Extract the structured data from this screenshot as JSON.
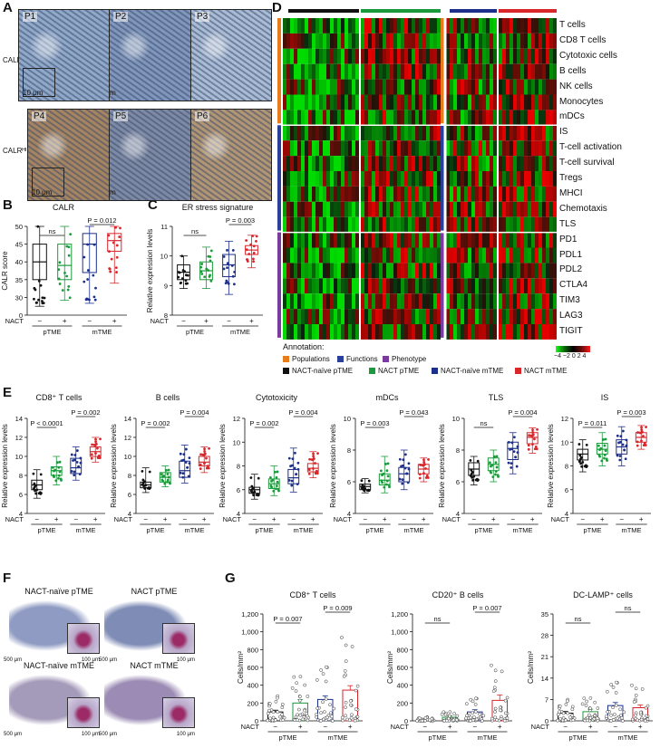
{
  "panels": {
    "A": "A",
    "B": "B",
    "C": "C",
    "D": "D",
    "E": "E",
    "F": "F",
    "G": "G"
  },
  "panelA": {
    "images": [
      {
        "label": "P1",
        "group": "lo",
        "color": "#8fa9c9"
      },
      {
        "label": "P2",
        "group": "lo",
        "color": "#7e97ba"
      },
      {
        "label": "P3",
        "group": "lo",
        "color": "#a8bcd4"
      },
      {
        "label": "P4",
        "group": "hi",
        "color": "#a48560"
      },
      {
        "label": "P5",
        "group": "hi",
        "color": "#7d8aa3"
      },
      {
        "label": "P6",
        "group": "hi",
        "color": "#b09672"
      }
    ],
    "row_labels": {
      "lo": "CALRᴸᴼ",
      "hi": "CALRᴴᴵ"
    },
    "scale_small": "10 μm",
    "scale_large": "100 μm"
  },
  "groups": {
    "nact_row": "NACT",
    "minus": "−",
    "plus": "+",
    "pTME": "pTME",
    "mTME": "mTME"
  },
  "colors": {
    "naive_p": "#111111",
    "nact_p": "#1a9a3a",
    "naive_m": "#1c2f8c",
    "nact_m": "#d8262b",
    "populations": "#e87b1c",
    "functions": "#2a3f9a",
    "phenotype": "#7a3aa0"
  },
  "chart_data": [
    {
      "id": "B",
      "type": "box",
      "title": "CALR",
      "ylabel": "CALR score",
      "yticks": [
        "0",
        "30",
        "35",
        "40",
        "45",
        "50"
      ],
      "ylim": [
        0,
        50
      ],
      "series": [
        {
          "name": "NACT-naïve pTME",
          "q1": 35,
          "median": 40,
          "q3": 45,
          "min": 15,
          "max": 50
        },
        {
          "name": "NACT pTME",
          "q1": 35,
          "median": 39,
          "q3": 45,
          "min": 25,
          "max": 50
        },
        {
          "name": "NACT-naïve mTME",
          "q1": 37,
          "median": 45,
          "q3": 48,
          "min": 20,
          "max": 50
        },
        {
          "name": "NACT mTME",
          "q1": 43,
          "median": 46,
          "q3": 48,
          "min": 34,
          "max": 50
        }
      ],
      "annotations": [
        {
          "text": "ns",
          "pair": [
            0,
            1
          ]
        },
        {
          "text": "P = 0.012",
          "pair": [
            2,
            3
          ]
        }
      ]
    },
    {
      "id": "C",
      "type": "box",
      "title": "ER stress signature",
      "ylabel": "Relative expression levels",
      "yticks": [
        "8",
        "9",
        "10",
        "11"
      ],
      "ylim": [
        8,
        11
      ],
      "series": [
        {
          "name": "NACT-naïve pTME",
          "q1": 9.2,
          "median": 9.45,
          "q3": 9.7,
          "min": 8.9,
          "max": 10.0
        },
        {
          "name": "NACT pTME",
          "q1": 9.2,
          "median": 9.5,
          "q3": 9.8,
          "min": 8.9,
          "max": 10.3
        },
        {
          "name": "NACT-naïve mTME",
          "q1": 9.3,
          "median": 9.7,
          "q3": 10.05,
          "min": 8.7,
          "max": 10.5
        },
        {
          "name": "NACT mTME",
          "q1": 10.05,
          "median": 10.2,
          "q3": 10.35,
          "min": 9.6,
          "max": 10.7
        }
      ],
      "annotations": [
        {
          "text": "ns",
          "pair": [
            0,
            1
          ]
        },
        {
          "text": "P = 0.003",
          "pair": [
            2,
            3
          ]
        }
      ]
    },
    {
      "id": "E1",
      "type": "box",
      "title": "CD8⁺ T cells",
      "ylabel": "Relative expression levels",
      "yticks": [
        "4",
        "6",
        "8",
        "10",
        "12",
        "14"
      ],
      "ylim": [
        4,
        14
      ],
      "series": [
        {
          "name": "NACT-naïve pTME",
          "q1": 6.5,
          "median": 7,
          "q3": 7.5,
          "min": 5.6,
          "max": 8.6
        },
        {
          "name": "NACT pTME",
          "q1": 8,
          "median": 8.5,
          "q3": 8.9,
          "min": 7,
          "max": 10
        },
        {
          "name": "NACT-naïve mTME",
          "q1": 8.2,
          "median": 8.8,
          "q3": 9.8,
          "min": 7.5,
          "max": 11
        },
        {
          "name": "NACT mTME",
          "q1": 10,
          "median": 10.5,
          "q3": 11,
          "min": 9.4,
          "max": 12
        }
      ],
      "annotations": [
        {
          "text": "P < 0.0001",
          "pair": [
            0,
            1
          ]
        },
        {
          "text": "P = 0.002",
          "pair": [
            2,
            3
          ]
        }
      ]
    },
    {
      "id": "E2",
      "type": "box",
      "title": "B cells",
      "ylabel": "Relative expression levels",
      "yticks": [
        "4",
        "6",
        "8",
        "10",
        "12",
        "14"
      ],
      "ylim": [
        4,
        14
      ],
      "series": [
        {
          "name": "NACT-naïve pTME",
          "q1": 6.7,
          "median": 7,
          "q3": 7.3,
          "min": 6.2,
          "max": 8.8
        },
        {
          "name": "NACT pTME",
          "q1": 7.3,
          "median": 7.8,
          "q3": 8.3,
          "min": 6.8,
          "max": 9
        },
        {
          "name": "NACT-naïve mTME",
          "q1": 7.8,
          "median": 8.5,
          "q3": 9.5,
          "min": 7.2,
          "max": 11.2
        },
        {
          "name": "NACT mTME",
          "q1": 9,
          "median": 9.4,
          "q3": 10,
          "min": 8.3,
          "max": 11
        }
      ],
      "annotations": [
        {
          "text": "P = 0.002",
          "pair": [
            0,
            1
          ]
        },
        {
          "text": "P = 0.004",
          "pair": [
            2,
            3
          ]
        }
      ]
    },
    {
      "id": "E3",
      "type": "box",
      "title": "Cytotoxicity",
      "ylabel": "Relative expression levels",
      "yticks": [
        "4",
        "6",
        "8",
        "10",
        "12"
      ],
      "ylim": [
        4,
        12
      ],
      "series": [
        {
          "name": "NACT-naïve pTME",
          "q1": 5.7,
          "median": 6,
          "q3": 6.2,
          "min": 5.2,
          "max": 7.3
        },
        {
          "name": "NACT pTME",
          "q1": 6.1,
          "median": 6.5,
          "q3": 6.9,
          "min": 5.5,
          "max": 8
        },
        {
          "name": "NACT-naïve mTME",
          "q1": 6.5,
          "median": 7,
          "q3": 7.7,
          "min": 5.8,
          "max": 9.5
        },
        {
          "name": "NACT mTME",
          "q1": 7.5,
          "median": 7.8,
          "q3": 8.2,
          "min": 7,
          "max": 9.2
        }
      ],
      "annotations": [
        {
          "text": "P = 0.002",
          "pair": [
            0,
            1
          ]
        },
        {
          "text": "P = 0.004",
          "pair": [
            2,
            3
          ]
        }
      ]
    },
    {
      "id": "E4",
      "type": "box",
      "title": "mDCs",
      "ylabel": "Relative expression levels",
      "yticks": [
        "4",
        "6",
        "8",
        "10"
      ],
      "ylim": [
        4,
        10
      ],
      "series": [
        {
          "name": "NACT-naïve pTME",
          "q1": 5.5,
          "median": 5.7,
          "q3": 5.85,
          "min": 5.3,
          "max": 6.2
        },
        {
          "name": "NACT pTME",
          "q1": 5.8,
          "median": 6.1,
          "q3": 6.5,
          "min": 5.3,
          "max": 7.6
        },
        {
          "name": "NACT-naïve mTME",
          "q1": 6,
          "median": 6.5,
          "q3": 6.9,
          "min": 5.5,
          "max": 8
        },
        {
          "name": "NACT mTME",
          "q1": 6.5,
          "median": 6.8,
          "q3": 7.1,
          "min": 6,
          "max": 7.5
        }
      ],
      "annotations": [
        {
          "text": "P = 0.003",
          "pair": [
            0,
            1
          ]
        },
        {
          "text": "P = 0.043",
          "pair": [
            2,
            3
          ]
        }
      ]
    },
    {
      "id": "E5",
      "type": "box",
      "title": "TLS",
      "ylabel": "Relative expression levels",
      "yticks": [
        "4",
        "6",
        "8",
        "10"
      ],
      "ylim": [
        4,
        10
      ],
      "series": [
        {
          "name": "NACT-naïve pTME",
          "q1": 6.4,
          "median": 6.8,
          "q3": 7.2,
          "min": 5.8,
          "max": 7.6
        },
        {
          "name": "NACT pTME",
          "q1": 6.7,
          "median": 7.1,
          "q3": 7.5,
          "min": 6,
          "max": 8
        },
        {
          "name": "NACT-naïve mTME",
          "q1": 7.4,
          "median": 8.1,
          "q3": 8.5,
          "min": 6.5,
          "max": 9.1
        },
        {
          "name": "NACT mTME",
          "q1": 8.4,
          "median": 8.8,
          "q3": 9.1,
          "min": 7.8,
          "max": 9.4
        }
      ],
      "annotations": [
        {
          "text": "ns",
          "pair": [
            0,
            1
          ]
        },
        {
          "text": "P = 0.004",
          "pair": [
            2,
            3
          ]
        }
      ]
    },
    {
      "id": "E6",
      "type": "box",
      "title": "IS",
      "ylabel": "Relative expression levels",
      "yticks": [
        "4",
        "6",
        "8",
        "10",
        "12"
      ],
      "ylim": [
        4,
        12
      ],
      "series": [
        {
          "name": "NACT-naïve pTME",
          "q1": 8.5,
          "median": 9,
          "q3": 9.4,
          "min": 7.5,
          "max": 10.2
        },
        {
          "name": "NACT pTME",
          "q1": 9,
          "median": 9.4,
          "q3": 9.9,
          "min": 8,
          "max": 10.8
        },
        {
          "name": "NACT-naïve mTME",
          "q1": 9,
          "median": 9.6,
          "q3": 10.2,
          "min": 8,
          "max": 11.3
        },
        {
          "name": "NACT mTME",
          "q1": 10,
          "median": 10.4,
          "q3": 10.8,
          "min": 9.4,
          "max": 11.4
        }
      ],
      "annotations": [
        {
          "text": "P = 0.011",
          "pair": [
            0,
            1
          ]
        },
        {
          "text": "P = 0.003",
          "pair": [
            2,
            3
          ]
        }
      ]
    },
    {
      "id": "G1",
      "type": "bar",
      "title": "CD8⁺ T cells",
      "ylabel": "Cells/mm²",
      "yticks": [
        "0",
        "200",
        "400",
        "600",
        "800",
        "1,000",
        "1,200"
      ],
      "ylim": [
        0,
        1200
      ],
      "series": [
        {
          "name": "NACT-naïve pTME",
          "value": 100,
          "err": 20
        },
        {
          "name": "NACT pTME",
          "value": 200,
          "err": 40
        },
        {
          "name": "NACT-naïve mTME",
          "value": 240,
          "err": 40
        },
        {
          "name": "NACT mTME",
          "value": 345,
          "err": 50
        }
      ],
      "annotations": [
        {
          "text": "P = 0.007",
          "pair": [
            0,
            1
          ]
        },
        {
          "text": "P = 0.009",
          "pair": [
            2,
            3
          ]
        }
      ]
    },
    {
      "id": "G2",
      "type": "bar",
      "title": "CD20⁺ B cells",
      "ylabel": "Cells/mm²",
      "yticks": [
        "0",
        "200",
        "400",
        "600",
        "800",
        "1,000",
        "1,200"
      ],
      "ylim": [
        0,
        1200
      ],
      "series": [
        {
          "name": "NACT-naïve pTME",
          "value": 15,
          "err": 5
        },
        {
          "name": "NACT pTME",
          "value": 40,
          "err": 15
        },
        {
          "name": "NACT-naïve mTME",
          "value": 100,
          "err": 25
        },
        {
          "name": "NACT mTME",
          "value": 230,
          "err": 60
        }
      ],
      "annotations": [
        {
          "text": "ns",
          "pair": [
            0,
            1
          ]
        },
        {
          "text": "P = 0.007",
          "pair": [
            2,
            3
          ]
        }
      ]
    },
    {
      "id": "G3",
      "type": "bar",
      "title": "DC-LAMP⁺ cells",
      "ylabel": "Cells/mm²",
      "yticks": [
        "0",
        "7",
        "14",
        "21",
        "28",
        "35"
      ],
      "ylim": [
        0,
        35
      ],
      "series": [
        {
          "name": "NACT-naïve pTME",
          "value": 2.5,
          "err": 0.6
        },
        {
          "name": "NACT pTME",
          "value": 3,
          "err": 0.8
        },
        {
          "name": "NACT-naïve mTME",
          "value": 5,
          "err": 1
        },
        {
          "name": "NACT mTME",
          "value": 4.3,
          "err": 0.9
        }
      ],
      "annotations": [
        {
          "text": "ns",
          "pair": [
            0,
            1
          ]
        },
        {
          "text": "ns",
          "pair": [
            2,
            3
          ]
        }
      ]
    }
  ],
  "heatmap": {
    "rows": [
      "T cells",
      "CD8 T cells",
      "Cytotoxic cells",
      "B cells",
      "NK cells",
      "Monocytes",
      "mDCs",
      "IS",
      "T-cell activation",
      "T-cell survival",
      "Tregs",
      "MHCI",
      "Chemotaxis",
      "TLS",
      "PD1",
      "PDL1",
      "PDL2",
      "CTLA4",
      "TIM3",
      "LAG3",
      "TIGIT"
    ],
    "scale_label": "−4 −2 0 2 4",
    "annotation_title": "Annotation:",
    "legend": [
      {
        "label": "Populations",
        "color": "#e87b1c"
      },
      {
        "label": "Functions",
        "color": "#2a3f9a"
      },
      {
        "label": "Phenotype",
        "color": "#7a3aa0"
      },
      {
        "label": "NACT-naïve pTME",
        "color": "#111111"
      },
      {
        "label": "NACT pTME",
        "color": "#1a9a3a"
      },
      {
        "label": "NACT-naïve mTME",
        "color": "#1c2f8c"
      },
      {
        "label": "NACT mTME",
        "color": "#d8262b"
      }
    ]
  },
  "panelF": {
    "slides": [
      {
        "title": "NACT-naïve pTME",
        "scale_large": "500 μm",
        "scale_small": "100 μm"
      },
      {
        "title": "NACT pTME",
        "scale_large": "500 μm",
        "scale_small": "100 μm"
      },
      {
        "title": "NACT-naïve mTME",
        "scale_large": "500 μm",
        "scale_small": "100 μm"
      },
      {
        "title": "NACT mTME",
        "scale_large": "500 μm",
        "scale_small": "100 μm"
      }
    ]
  }
}
